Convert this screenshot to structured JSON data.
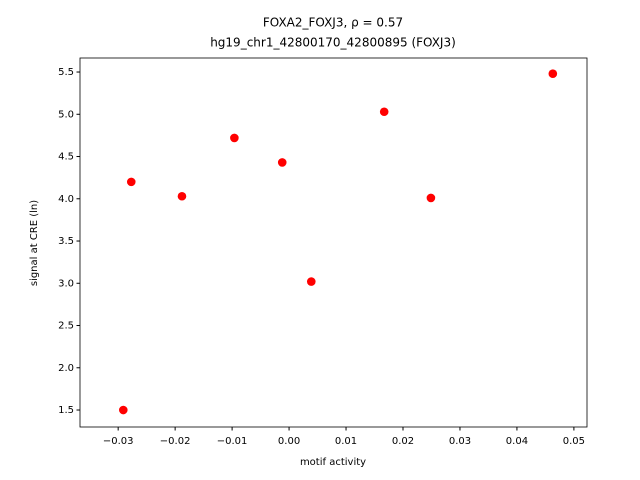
{
  "chart_data": {
    "type": "scatter",
    "title": "FOXA2_FOXJ3, ρ = 0.57",
    "subtitle": "hg19_chr1_42800170_42800895 (FOXJ3)",
    "x_label": "motif activity",
    "y_label": "signal at CRE (ln)",
    "color": "#ff0000",
    "series": [
      {
        "name": "CRE",
        "color": "#ff0000",
        "x": [
          -0.0291,
          -0.0277,
          -0.0188,
          -0.0096,
          -0.0012,
          0.0039,
          0.0167,
          0.0249,
          0.0463
        ],
        "values": [
          1.5,
          4.2,
          4.03,
          4.72,
          4.43,
          3.02,
          5.03,
          4.01,
          5.48
        ]
      }
    ],
    "xlim": [
      -0.0367,
      0.0523
    ],
    "ylim": [
      1.299,
      5.666
    ],
    "xticks": [
      {
        "value": -0.03,
        "label": "−0.03"
      },
      {
        "value": -0.02,
        "label": "−0.02"
      },
      {
        "value": -0.01,
        "label": "−0.01"
      },
      {
        "value": 0,
        "label": "0.00"
      },
      {
        "value": 0.01,
        "label": "0.01"
      },
      {
        "value": 0.02,
        "label": "0.02"
      },
      {
        "value": 0.03,
        "label": "0.03"
      },
      {
        "value": 0.04,
        "label": "0.04"
      },
      {
        "value": 0.05,
        "label": "0.05"
      }
    ],
    "yticks": [
      {
        "value": 1.5,
        "label": "1.5"
      },
      {
        "value": 2,
        "label": "2.0"
      },
      {
        "value": 2.5,
        "label": "2.5"
      },
      {
        "value": 3,
        "label": "3.0"
      },
      {
        "value": 3.5,
        "label": "3.5"
      },
      {
        "value": 4,
        "label": "4.0"
      },
      {
        "value": 4.5,
        "label": "4.5"
      },
      {
        "value": 5,
        "label": "5.0"
      },
      {
        "value": 5.5,
        "label": "5.5"
      }
    ],
    "grid": false
  }
}
